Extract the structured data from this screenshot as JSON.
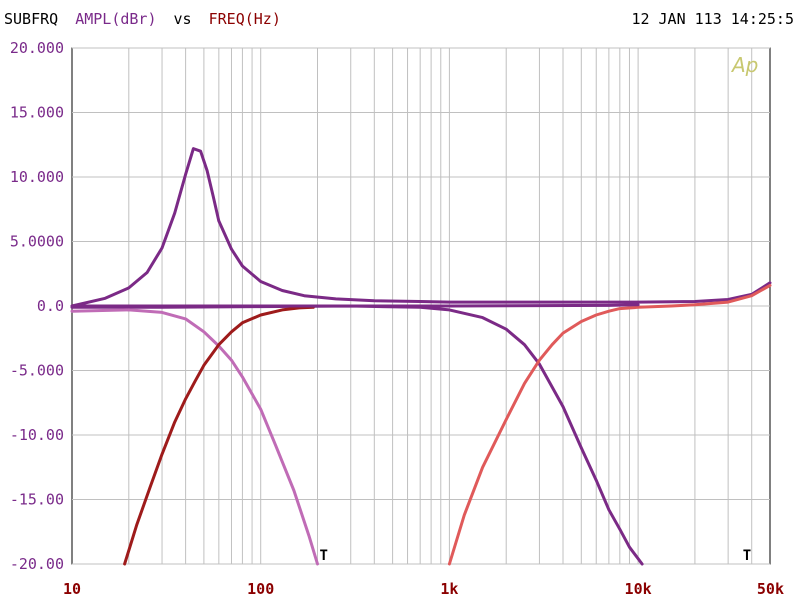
{
  "header": {
    "name": "SUBFRQ",
    "y_quantity": "AMPL(dBr)",
    "vs": "vs",
    "x_quantity": "FREQ(Hz)",
    "timestamp": "12 JAN 113 14:25:5"
  },
  "logo_text": "Ap",
  "tmark_label": "T",
  "colors": {
    "purple": "#7b2a86",
    "light_purple": "#c06cb6",
    "dark_red": "#9e1b1b",
    "light_red": "#e05a5a",
    "y_axis_text": "#7a2a8a",
    "x_axis_text": "#8b0000",
    "grid": "#c0c0c0"
  },
  "chart_data": {
    "type": "line",
    "xscale": "log",
    "xlim": [
      10,
      50000
    ],
    "ylim": [
      -20,
      20
    ],
    "grid": true,
    "ytick_values": [
      20,
      15,
      10,
      5,
      0,
      -5,
      -10,
      -15,
      -20
    ],
    "ytick_labels": [
      "20.000",
      "15.000",
      "10.000",
      "5.0000",
      "0.0",
      "-5.000",
      "-10.00",
      "-15.00",
      "-20.00"
    ],
    "xtick_values": [
      10,
      100,
      1000,
      10000,
      50000
    ],
    "xtick_labels": [
      "10",
      "100",
      "1k",
      "10k",
      "50k"
    ],
    "tmarks_x": [
      200,
      35000
    ],
    "series": [
      {
        "color": "purple",
        "x": [
          10,
          15,
          20,
          25,
          30,
          35,
          40,
          44,
          48,
          52,
          56,
          60,
          70,
          80,
          100,
          130,
          170,
          250,
          400,
          700,
          1000,
          3000,
          10000,
          20000,
          30000,
          40000,
          50000
        ],
        "y": [
          0.0,
          0.6,
          1.4,
          2.6,
          4.5,
          7.2,
          10.2,
          12.2,
          12.0,
          10.5,
          8.5,
          6.6,
          4.4,
          3.1,
          1.9,
          1.2,
          0.8,
          0.55,
          0.4,
          0.35,
          0.3,
          0.3,
          0.3,
          0.35,
          0.5,
          0.9,
          1.8
        ]
      },
      {
        "color": "purple",
        "x": [
          10,
          30,
          100,
          300,
          700,
          1000,
          1500,
          2000,
          2500,
          3000,
          4000,
          5000,
          6000,
          7000,
          8000,
          9000,
          10500
        ],
        "y": [
          -0.1,
          -0.1,
          -0.05,
          0.0,
          -0.1,
          -0.3,
          -0.9,
          -1.8,
          -3.0,
          -4.5,
          -7.8,
          -11.0,
          -13.5,
          -15.8,
          -17.3,
          -18.7,
          -20.0
        ]
      },
      {
        "color": "light_purple",
        "x": [
          10,
          20,
          30,
          40,
          50,
          60,
          70,
          80,
          100,
          120,
          150,
          180,
          200
        ],
        "y": [
          -0.4,
          -0.3,
          -0.5,
          -1.0,
          -2.0,
          -3.1,
          -4.2,
          -5.5,
          -8.0,
          -10.8,
          -14.3,
          -17.8,
          -20.0
        ]
      },
      {
        "color": "dark_red",
        "x": [
          19,
          22,
          26,
          30,
          35,
          40,
          45,
          50,
          60,
          70,
          80,
          100,
          130,
          160,
          190
        ],
        "y": [
          -20.0,
          -17.0,
          -14.0,
          -11.5,
          -9.0,
          -7.2,
          -5.8,
          -4.6,
          -3.0,
          -2.0,
          -1.3,
          -0.7,
          -0.3,
          -0.15,
          -0.1
        ]
      },
      {
        "color": "light_red",
        "x": [
          1000,
          1200,
          1500,
          2000,
          2500,
          3000,
          3500,
          4000,
          5000,
          6000,
          7000,
          8000,
          10000,
          15000,
          20000,
          30000,
          40000,
          50000
        ],
        "y": [
          -20.0,
          -16.2,
          -12.5,
          -8.8,
          -6.0,
          -4.2,
          -3.0,
          -2.1,
          -1.2,
          -0.7,
          -0.4,
          -0.2,
          -0.1,
          0.0,
          0.1,
          0.3,
          0.8,
          1.6
        ]
      },
      {
        "color": "purple",
        "x": [
          10,
          100,
          1000,
          7000,
          10000
        ],
        "y": [
          0.0,
          0.0,
          0.0,
          0.05,
          0.1
        ]
      }
    ]
  }
}
